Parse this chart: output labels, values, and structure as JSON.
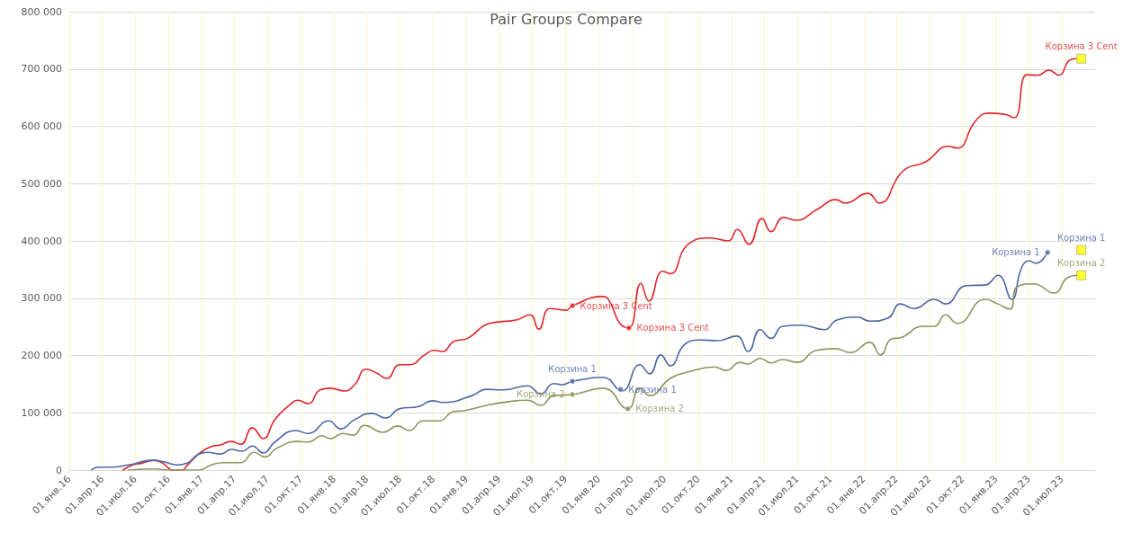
{
  "chart_data": {
    "type": "line",
    "title": "Pair Groups Compare",
    "marker": "none",
    "line_style": "solid",
    "grid": true,
    "xlim": [
      "2016-01-01",
      "2023-10-01"
    ],
    "xticks": [
      {
        "value": "2016-01-01",
        "label": "01.янв.16"
      },
      {
        "value": "2016-04-01",
        "label": "01.апр.16"
      },
      {
        "value": "2016-07-01",
        "label": "01.июл.16"
      },
      {
        "value": "2016-10-01",
        "label": "01.окт.16"
      },
      {
        "value": "2017-01-01",
        "label": "01.янв.17"
      },
      {
        "value": "2017-04-01",
        "label": "01.апр.17"
      },
      {
        "value": "2017-07-01",
        "label": "01.июл.17"
      },
      {
        "value": "2017-10-01",
        "label": "01.окт.17"
      },
      {
        "value": "2018-01-01",
        "label": "01.янв.18"
      },
      {
        "value": "2018-04-01",
        "label": "01.апр.18"
      },
      {
        "value": "2018-07-01",
        "label": "01.июл.18"
      },
      {
        "value": "2018-10-01",
        "label": "01.окт.18"
      },
      {
        "value": "2019-01-01",
        "label": "01.янв.19"
      },
      {
        "value": "2019-04-01",
        "label": "01.апр.19"
      },
      {
        "value": "2019-07-01",
        "label": "01.июл.19"
      },
      {
        "value": "2019-10-01",
        "label": "01.окт.19"
      },
      {
        "value": "2020-01-01",
        "label": "01.янв.20"
      },
      {
        "value": "2020-04-01",
        "label": "01.апр.20"
      },
      {
        "value": "2020-07-01",
        "label": "01.июл.20"
      },
      {
        "value": "2020-10-01",
        "label": "01.окт.20"
      },
      {
        "value": "2021-01-01",
        "label": "01.янв.21"
      },
      {
        "value": "2021-04-01",
        "label": "01.апр.21"
      },
      {
        "value": "2021-07-01",
        "label": "01.июл.21"
      },
      {
        "value": "2021-10-01",
        "label": "01.окт.21"
      },
      {
        "value": "2022-01-01",
        "label": "01.янв.22"
      },
      {
        "value": "2022-04-01",
        "label": "01.апр.22"
      },
      {
        "value": "2022-07-01",
        "label": "01.июл.22"
      },
      {
        "value": "2022-10-01",
        "label": "01.окт.22"
      },
      {
        "value": "2023-01-01",
        "label": "01.янв.23"
      },
      {
        "value": "2023-04-01",
        "label": "01.апр.23"
      },
      {
        "value": "2023-07-01",
        "label": "01.июл.23"
      }
    ],
    "ylim": [
      0,
      800000
    ],
    "yticks": [
      {
        "value": 0,
        "label": "0"
      },
      {
        "value": 100000,
        "label": "100 000"
      },
      {
        "value": 200000,
        "label": "200 000"
      },
      {
        "value": 300000,
        "label": "300 000"
      },
      {
        "value": 400000,
        "label": "400 000"
      },
      {
        "value": 500000,
        "label": "500 000"
      },
      {
        "value": 600000,
        "label": "600 000"
      },
      {
        "value": 700000,
        "label": "700 000"
      },
      {
        "value": 800000,
        "label": "800 000"
      }
    ],
    "series": [
      {
        "color": "#e0262b",
        "x": [
          "2016-05-28",
          "2016-06-24",
          "2016-07-19",
          "2016-08-23",
          "2016-09-15",
          "2016-10-14",
          "2016-11-07",
          "2016-11-21",
          "2016-12-23",
          "2017-01-27",
          "2017-02-21",
          "2017-03-23",
          "2017-04-18",
          "2017-05-20",
          "2017-06-19",
          "2017-07-21",
          "2017-08-30",
          "2017-09-22",
          "2017-10-21",
          "2017-11-23",
          "2017-12-22",
          "2018-01-29",
          "2018-02-26",
          "2018-03-30",
          "2018-04-29",
          "2018-05-26",
          "2018-06-30",
          "2018-07-28",
          "2018-09-07",
          "2018-10-04",
          "2018-10-28",
          "2018-11-25",
          "2019-01-04",
          "2019-03-05",
          "2019-05-18",
          "2019-06-25",
          "2019-07-19",
          "2019-08-19",
          "2019-10-03",
          "2019-10-20",
          "2020-01-11",
          "2020-01-30",
          "2020-02-28",
          "2020-03-24",
          "2020-04-26",
          "2020-05-18",
          "2020-06-25",
          "2020-07-16",
          "2020-09-03",
          "2020-11-04",
          "2020-12-23",
          "2021-01-17",
          "2021-02-18",
          "2021-03-26",
          "2021-04-20",
          "2021-05-24",
          "2021-06-26",
          "2021-08-28",
          "2021-10-16",
          "2021-11-10",
          "2022-01-12",
          "2022-02-13",
          "2022-04-19",
          "2022-06-21",
          "2022-08-22",
          "2022-09-16",
          "2022-11-05",
          "2022-12-12",
          "2023-01-24",
          "2023-02-20",
          "2023-03-27",
          "2023-04-26",
          "2023-05-26",
          "2023-06-23",
          "2023-07-22",
          "2023-08-09"
        ],
        "values": [
          0,
          9000,
          12000,
          17000,
          12000,
          0,
          0,
          8000,
          28000,
          41000,
          44000,
          50000,
          45000,
          74000,
          55000,
          88000,
          113000,
          122000,
          116000,
          140000,
          143000,
          138000,
          149000,
          176000,
          169000,
          160000,
          184000,
          184000,
          201000,
          209000,
          207000,
          224000,
          230000,
          256000,
          262000,
          271000,
          246000,
          282000,
          279000,
          287000,
          303000,
          295000,
          256000,
          248000,
          326000,
          295000,
          347000,
          343000,
          394000,
          405000,
          400000,
          420000,
          394000,
          439000,
          416000,
          441000,
          436000,
          456000,
          472000,
          466000,
          483000,
          466000,
          522000,
          538000,
          565000,
          562000,
          609000,
          623000,
          621000,
          615000,
          690000,
          689000,
          698000,
          689000,
          715000,
          718000
        ]
      },
      {
        "color": "#4a67a6",
        "x": [
          "2016-03-02",
          "2016-03-21",
          "2016-04-23",
          "2016-06-12",
          "2016-08-18",
          "2016-09-20",
          "2016-10-24",
          "2016-11-21",
          "2016-12-23",
          "2017-01-17",
          "2017-02-21",
          "2017-03-23",
          "2017-04-22",
          "2017-05-20",
          "2017-06-19",
          "2017-07-21",
          "2017-09-17",
          "2017-10-21",
          "2017-12-17",
          "2018-01-19",
          "2018-02-26",
          "2018-04-15",
          "2018-05-22",
          "2018-06-30",
          "2018-08-22",
          "2018-09-29",
          "2018-10-28",
          "2019-01-16",
          "2019-02-25",
          "2019-04-12",
          "2019-06-18",
          "2019-07-25",
          "2019-08-29",
          "2019-09-21",
          "2019-10-20",
          "2020-01-13",
          "2020-03-04",
          "2020-04-23",
          "2020-05-20",
          "2020-06-20",
          "2020-07-16",
          "2020-08-26",
          "2020-10-07",
          "2020-11-23",
          "2021-01-15",
          "2021-02-16",
          "2021-03-21",
          "2021-04-20",
          "2021-05-22",
          "2021-07-13",
          "2021-09-14",
          "2021-10-19",
          "2021-12-15",
          "2022-01-17",
          "2022-03-08",
          "2022-04-12",
          "2022-05-19",
          "2022-07-15",
          "2022-08-14",
          "2022-10-11",
          "2022-12-02",
          "2023-01-06",
          "2023-02-13",
          "2023-03-12",
          "2023-04-02",
          "2023-04-21",
          "2023-05-23"
        ],
        "values": [
          0,
          5000,
          5000,
          9000,
          17000,
          14000,
          9000,
          12000,
          28000,
          31000,
          28000,
          36000,
          33000,
          42000,
          30000,
          49000,
          69000,
          64000,
          86000,
          72000,
          88000,
          99000,
          91000,
          107000,
          111000,
          121000,
          118000,
          130000,
          141000,
          140000,
          147000,
          133000,
          151000,
          149000,
          155000,
          162000,
          138000,
          184000,
          168000,
          201000,
          182000,
          220000,
          227000,
          226000,
          234000,
          207000,
          245000,
          230000,
          251000,
          253000,
          245000,
          262000,
          267000,
          260000,
          265000,
          290000,
          282000,
          298000,
          290000,
          322000,
          323000,
          340000,
          298000,
          353000,
          365000,
          361000,
          380000
        ]
      },
      {
        "color": "#8e9460",
        "x": [
          "2016-06-12",
          "2016-08-23",
          "2016-09-30",
          "2016-12-23",
          "2017-01-27",
          "2017-02-28",
          "2017-04-18",
          "2017-05-25",
          "2017-06-24",
          "2017-07-26",
          "2017-09-22",
          "2017-10-21",
          "2017-11-28",
          "2017-12-22",
          "2018-01-24",
          "2018-02-23",
          "2018-03-25",
          "2018-05-16",
          "2018-06-25",
          "2018-07-28",
          "2018-09-02",
          "2018-10-18",
          "2018-11-25",
          "2018-12-29",
          "2019-02-25",
          "2019-04-21",
          "2019-06-18",
          "2019-07-25",
          "2019-08-29",
          "2019-10-20",
          "2020-01-13",
          "2020-03-21",
          "2020-04-23",
          "2020-05-20",
          "2020-07-16",
          "2020-09-08",
          "2020-11-14",
          "2020-12-18",
          "2021-01-25",
          "2021-02-14",
          "2021-03-21",
          "2021-04-20",
          "2021-05-22",
          "2021-07-01",
          "2021-08-23",
          "2021-10-14",
          "2021-11-25",
          "2022-01-17",
          "2022-02-16",
          "2022-03-18",
          "2022-04-12",
          "2022-06-13",
          "2022-07-15",
          "2022-08-14",
          "2022-09-16",
          "2022-12-02",
          "2023-01-06",
          "2023-02-08",
          "2023-02-28",
          "2023-04-14",
          "2023-06-10",
          "2023-07-17",
          "2023-08-14"
        ],
        "values": [
          0,
          2000,
          0,
          0,
          9000,
          13000,
          13000,
          31000,
          23000,
          38000,
          50000,
          49000,
          60000,
          55000,
          64000,
          61000,
          78000,
          66000,
          77000,
          69000,
          86000,
          86000,
          102000,
          104000,
          113000,
          119000,
          122000,
          113000,
          130000,
          132000,
          143000,
          107000,
          143000,
          130000,
          160000,
          172000,
          180000,
          174000,
          188000,
          185000,
          195000,
          187000,
          193000,
          188000,
          209000,
          212000,
          205000,
          223000,
          201000,
          229000,
          231000,
          251000,
          251000,
          271000,
          256000,
          298000,
          290000,
          281000,
          320000,
          325000,
          309000,
          336000,
          340000
        ]
      }
    ],
    "annotations": [
      {
        "text": "Корзина 3 Cent",
        "x": "2019-10-20",
        "y": 287000
      },
      {
        "text": "Корзина 3 Cent",
        "x": "2020-03-24",
        "y": 248000
      },
      {
        "text": "Корзина 1",
        "x": "2019-10-20",
        "y": 155000
      },
      {
        "text": "Корзина 1",
        "x": "2020-03-01",
        "y": 141000
      },
      {
        "text": "Корзина 2",
        "x": "2019-10-20",
        "y": 132000
      },
      {
        "text": "Корзина 2",
        "x": "2020-03-21",
        "y": 107000
      },
      {
        "text": "Корзина 1",
        "x": "2023-05-23",
        "y": 380000
      },
      {
        "text": "Корзина 3 Cent",
        "x": "2023-08-24",
        "y": 718000
      },
      {
        "text": "Корзина 1",
        "x": "2023-08-24",
        "y": 384000
      },
      {
        "text": "Корзина 2",
        "x": "2023-08-24",
        "y": 340000
      }
    ]
  }
}
